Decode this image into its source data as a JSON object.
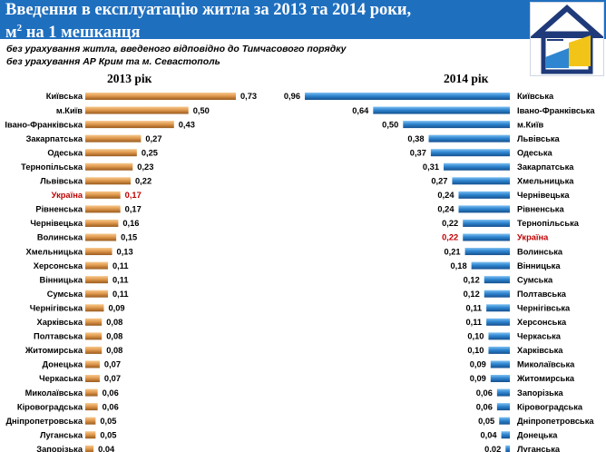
{
  "title_line1": "Введення в експлуатацію житла за 2013 та 2014 роки,",
  "title_line2_prefix": "м",
  "title_line2_sup": "2",
  "title_line2_suffix": " на 1 мешканця",
  "notes": [
    "без урахування житла, введеного відповідно до Тимчасового порядку",
    "без урахування АР Крим та м. Севастополь"
  ],
  "colors": {
    "header": "#1f6fbf",
    "bar_2013": "#e09a4f",
    "bar_2014": "#2f86d0",
    "highlight": "#c00000"
  },
  "chart_data": [
    {
      "type": "bar",
      "orientation": "horizontal",
      "title": "2013 рік",
      "highlight": "Україна",
      "categories": [
        "Київська",
        "м.Київ",
        "Івано-Франківська",
        "Закарпатська",
        "Одеська",
        "Тернопільська",
        "Львівська",
        "Україна",
        "Рівненська",
        "Чернівецька",
        "Волинська",
        "Хмельницька",
        "Херсонська",
        "Вінницька",
        "Сумська",
        "Чернігівська",
        "Харківська",
        "Полтавська",
        "Житомирська",
        "Донецька",
        "Черкаська",
        "Миколаївська",
        "Кіровоградська",
        "Дніпропетровська",
        "Луганська",
        "Запорізька"
      ],
      "values": [
        0.73,
        0.5,
        0.43,
        0.27,
        0.25,
        0.23,
        0.22,
        0.17,
        0.17,
        0.16,
        0.15,
        0.13,
        0.11,
        0.11,
        0.11,
        0.09,
        0.08,
        0.08,
        0.08,
        0.07,
        0.07,
        0.06,
        0.06,
        0.05,
        0.05,
        0.04
      ],
      "labels": [
        "0,73",
        "0,50",
        "0,43",
        "0,27",
        "0,25",
        "0,23",
        "0,22",
        "0,17",
        "0,17",
        "0,16",
        "0,15",
        "0,13",
        "0,11",
        "0,11",
        "0,11",
        "0,09",
        "0,08",
        "0,08",
        "0,08",
        "0,07",
        "0,07",
        "0,06",
        "0,06",
        "0,05",
        "0,05",
        "0,04"
      ]
    },
    {
      "type": "bar",
      "orientation": "horizontal",
      "title": "2014 рік",
      "highlight": "Україна",
      "categories": [
        "Київська",
        "Івано-Франківська",
        "м.Київ",
        "Львівська",
        "Одеська",
        "Закарпатська",
        "Хмельницька",
        "Чернівецька",
        "Рівненська",
        "Тернопільська",
        "Україна",
        "Волинська",
        "Вінницька",
        "Сумська",
        "Полтавська",
        "Чернігівська",
        "Херсонська",
        "Черкаська",
        "Харківська",
        "Миколаївська",
        "Житомирська",
        "Запорізька",
        "Кіровоградська",
        "Дніпропетровська",
        "Донецька",
        "Луганська"
      ],
      "values": [
        0.96,
        0.64,
        0.5,
        0.38,
        0.37,
        0.31,
        0.27,
        0.24,
        0.24,
        0.22,
        0.22,
        0.21,
        0.18,
        0.12,
        0.12,
        0.11,
        0.11,
        0.1,
        0.1,
        0.09,
        0.09,
        0.06,
        0.06,
        0.05,
        0.04,
        0.02
      ],
      "labels": [
        "0,96",
        "0,64",
        "0,50",
        "0,38",
        "0,37",
        "0,31",
        "0,27",
        "0,24",
        "0,24",
        "0,22",
        "0,22",
        "0,21",
        "0,18",
        "0,12",
        "0,12",
        "0,11",
        "0,11",
        "0,10",
        "0,10",
        "0,09",
        "0,09",
        "0,06",
        "0,06",
        "0,05",
        "0,04",
        "0,02"
      ]
    }
  ]
}
